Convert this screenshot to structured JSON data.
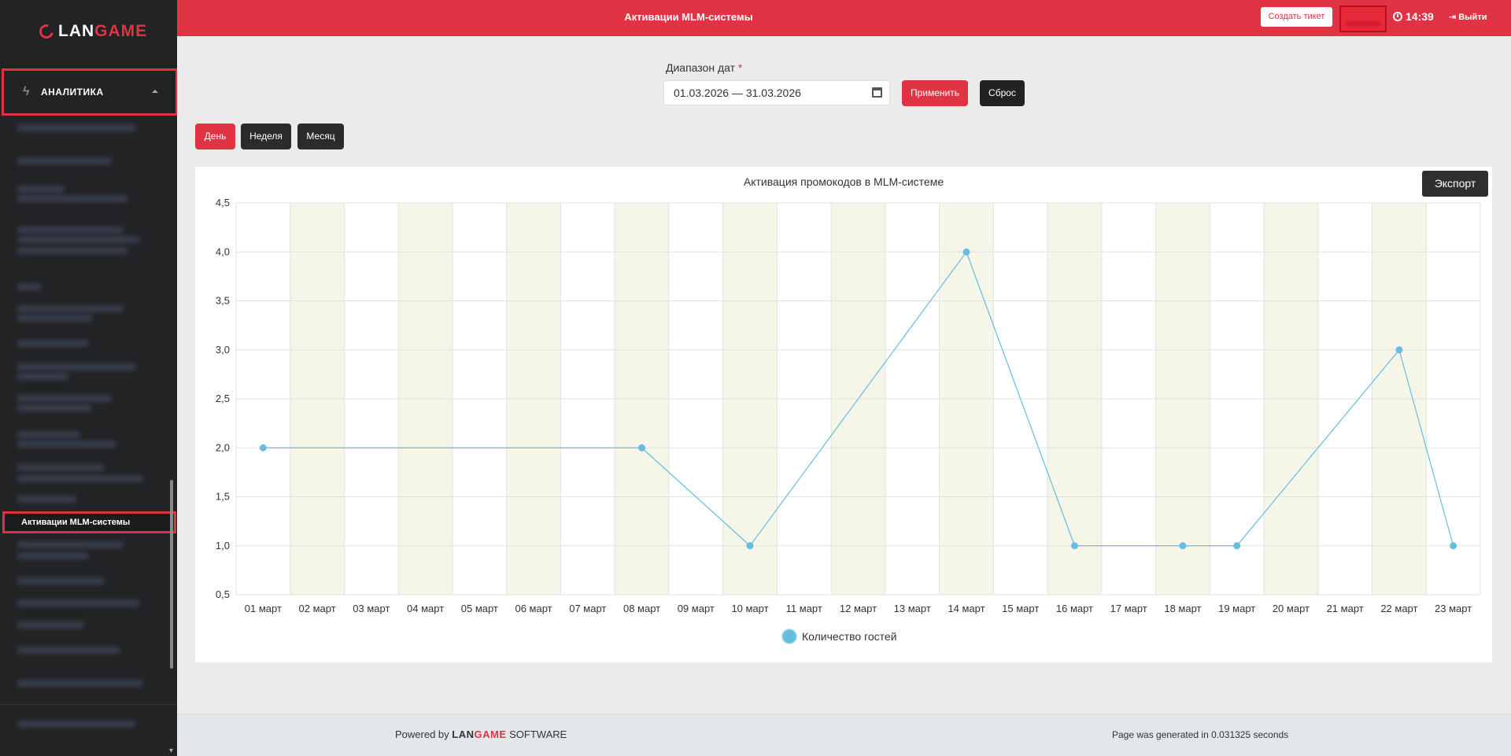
{
  "sidebar": {
    "logo": "LAN",
    "logo_accent": "GAME",
    "section_label": "АНАЛИТИКА",
    "active_item": "Активации MLM-системы"
  },
  "header": {
    "title": "Активации MLM-системы",
    "create_ticket": "Создать тикет",
    "time": "14:39",
    "logout": "Выйти"
  },
  "filter": {
    "label": "Диапазон дат",
    "required_mark": "*",
    "date_range": "01.03.2026 — 31.03.2026",
    "apply": "Применить",
    "reset": "Сброс"
  },
  "period": {
    "day": "День",
    "week": "Неделя",
    "month": "Месяц"
  },
  "export_label": "Экспорт",
  "footer": {
    "powered_prefix": "Powered by",
    "brand": "LAN",
    "brand_accent": "GAME",
    "brand_suffix": "SOFTWARE",
    "generated": "Page was generated in 0.031325 seconds"
  },
  "colors": {
    "accent": "#e03343",
    "line": "#66bde0",
    "band": "#f5f5e8"
  },
  "chart_data": {
    "type": "line",
    "title": "Активация промокодов в MLM-системе",
    "categories": [
      "01 март",
      "02 март",
      "03 март",
      "04 март",
      "05 март",
      "06 март",
      "07 март",
      "08 март",
      "09 март",
      "10 март",
      "11 март",
      "12 март",
      "13 март",
      "14 март",
      "15 март",
      "16 март",
      "17 март",
      "18 март",
      "19 март",
      "20 март",
      "21 март",
      "22 март",
      "23 март"
    ],
    "series": [
      {
        "name": "Количество гостей",
        "points": [
          [
            0,
            2
          ],
          [
            7,
            2
          ],
          [
            9,
            1
          ],
          [
            13,
            4
          ],
          [
            15,
            1
          ],
          [
            17,
            1
          ],
          [
            18,
            1
          ],
          [
            21,
            3
          ],
          [
            22,
            1
          ]
        ]
      }
    ],
    "ylim": [
      0.5,
      4.5
    ],
    "yticks": [
      "0,5",
      "1,0",
      "1,5",
      "2,0",
      "2,5",
      "3,0",
      "3,5",
      "4,0",
      "4,5"
    ],
    "grid": true,
    "legend": "bottom"
  }
}
